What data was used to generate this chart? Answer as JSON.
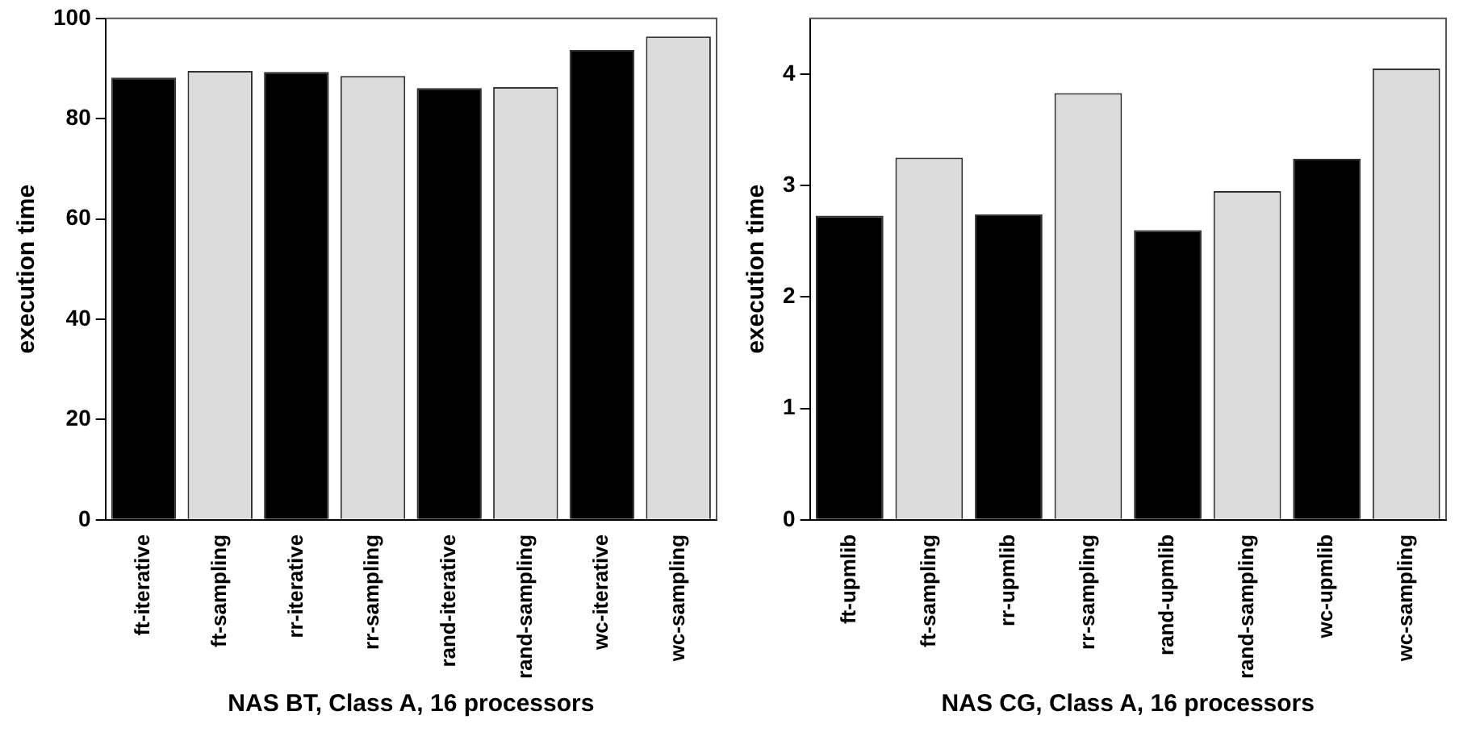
{
  "chart_data": [
    {
      "type": "bar",
      "categories": [
        "ft-iterative",
        "ft-sampling",
        "rr-iterative",
        "rr-sampling",
        "rand-iterative",
        "rand-sampling",
        "wc-iterative",
        "wc-sampling"
      ],
      "values": [
        88.2,
        89.5,
        89.3,
        88.5,
        86.1,
        86.3,
        93.7,
        96.4
      ],
      "colors": [
        "#000000",
        "#dcdcdc",
        "#000000",
        "#dcdcdc",
        "#000000",
        "#dcdcdc",
        "#000000",
        "#dcdcdc"
      ],
      "xlabel": "NAS BT, Class A, 16 processors",
      "ylabel": "execution time",
      "ylim": [
        0,
        100
      ],
      "yticks": [
        0,
        20,
        40,
        60,
        80,
        100
      ],
      "grid": false,
      "legend": false
    },
    {
      "type": "bar",
      "categories": [
        "ft-upmlib",
        "ft-sampling",
        "rr-upmlib",
        "rr-sampling",
        "rand-upmlib",
        "rand-sampling",
        "wc-upmlib",
        "wc-sampling"
      ],
      "values": [
        2.73,
        3.25,
        2.74,
        3.83,
        2.6,
        2.95,
        3.24,
        4.05
      ],
      "colors": [
        "#000000",
        "#dcdcdc",
        "#000000",
        "#dcdcdc",
        "#000000",
        "#dcdcdc",
        "#000000",
        "#dcdcdc"
      ],
      "xlabel": "NAS CG, Class A, 16 processors",
      "ylabel": "execution time",
      "ylim": [
        0,
        4.5
      ],
      "yticks": [
        0,
        1,
        2,
        3,
        4
      ],
      "grid": false,
      "legend": false
    }
  ]
}
